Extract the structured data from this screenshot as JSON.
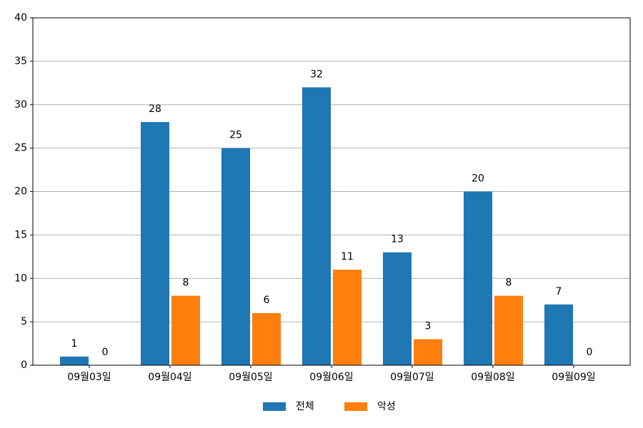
{
  "chart_data": {
    "type": "bar",
    "categories": [
      "09월03일",
      "09월04일",
      "09월05일",
      "09월06일",
      "09월07일",
      "09월08일",
      "09월09일"
    ],
    "series": [
      {
        "name": "전체",
        "color": "#1f77b4",
        "values": [
          1,
          28,
          25,
          32,
          13,
          20,
          7
        ]
      },
      {
        "name": "악성",
        "color": "#ff7f0e",
        "values": [
          0,
          8,
          6,
          11,
          3,
          8,
          0
        ]
      }
    ],
    "ylim": [
      0,
      40
    ],
    "yticks": [
      0,
      5,
      10,
      15,
      20,
      25,
      30,
      35,
      40
    ],
    "grid": true,
    "legend": "bottom"
  }
}
